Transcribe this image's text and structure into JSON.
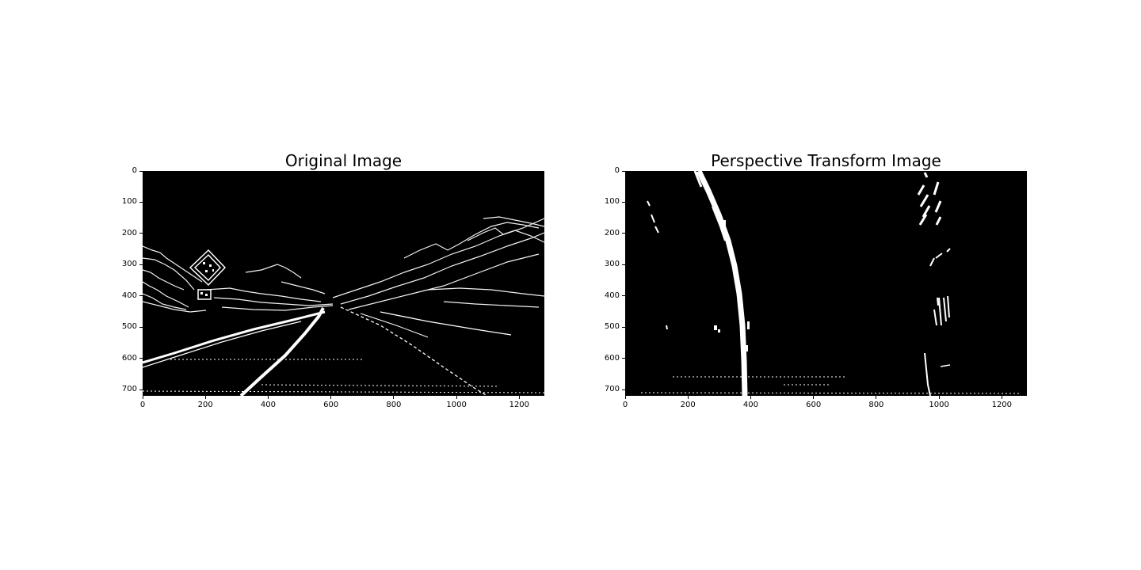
{
  "figure": {
    "panels": [
      {
        "title": "Original Image",
        "x_ticks": [
          "0",
          "200",
          "400",
          "600",
          "800",
          "1000",
          "1200"
        ],
        "y_ticks": [
          "0",
          "100",
          "200",
          "300",
          "400",
          "500",
          "600",
          "700"
        ],
        "x_tick_values": [
          0,
          200,
          400,
          600,
          800,
          1000,
          1200
        ],
        "y_tick_values": [
          0,
          100,
          200,
          300,
          400,
          500,
          600,
          700
        ],
        "xlim": [
          0,
          1280
        ],
        "ylim": [
          720,
          0
        ]
      },
      {
        "title": "Perspective Transform Image",
        "x_ticks": [
          "0",
          "200",
          "400",
          "600",
          "800",
          "1000",
          "1200"
        ],
        "y_ticks": [
          "0",
          "100",
          "200",
          "300",
          "400",
          "500",
          "600",
          "700"
        ],
        "x_tick_values": [
          0,
          200,
          400,
          600,
          800,
          1000,
          1200
        ],
        "y_tick_values": [
          0,
          100,
          200,
          300,
          400,
          500,
          600,
          700
        ],
        "xlim": [
          0,
          1280
        ],
        "ylim": [
          720,
          0
        ]
      }
    ],
    "colors": {
      "background": "#ffffff",
      "image_background": "#000000",
      "foreground_pixels": "#ffffff"
    }
  }
}
